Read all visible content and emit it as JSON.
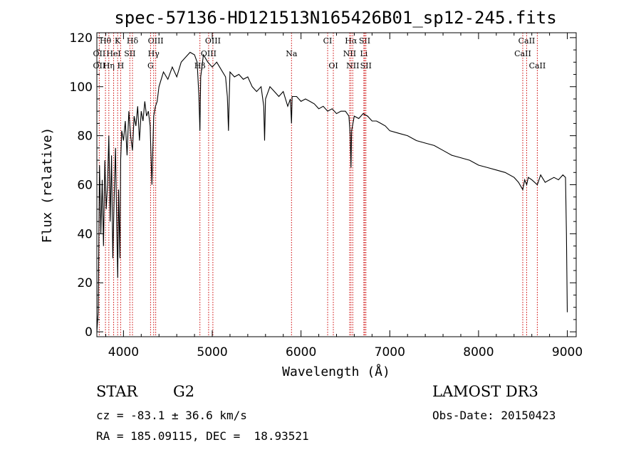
{
  "chart_data": {
    "type": "line",
    "title": "spec-57136-HD121513N165426B01_sp12-245.fits",
    "xlabel": "Wavelength (Å)",
    "ylabel": "Flux (relative)",
    "xlim": [
      3700,
      9100
    ],
    "ylim": [
      -2,
      122
    ],
    "xticks": [
      4000,
      5000,
      6000,
      7000,
      8000,
      9000
    ],
    "yticks": [
      0,
      20,
      40,
      60,
      80,
      100,
      120
    ],
    "series": [
      {
        "name": "flux",
        "x": [
          3700,
          3715,
          3730,
          3745,
          3760,
          3775,
          3790,
          3805,
          3820,
          3835,
          3850,
          3865,
          3880,
          3895,
          3910,
          3925,
          3935,
          3945,
          3960,
          3968,
          3980,
          4000,
          4020,
          4040,
          4060,
          4080,
          4101,
          4120,
          4140,
          4160,
          4180,
          4200,
          4220,
          4240,
          4260,
          4280,
          4300,
          4320,
          4340,
          4360,
          4380,
          4400,
          4450,
          4500,
          4550,
          4600,
          4650,
          4700,
          4750,
          4800,
          4830,
          4850,
          4861,
          4870,
          4900,
          4950,
          5000,
          5050,
          5100,
          5150,
          5170,
          5183,
          5190,
          5200,
          5250,
          5300,
          5350,
          5400,
          5450,
          5500,
          5550,
          5580,
          5590,
          5600,
          5650,
          5700,
          5750,
          5800,
          5850,
          5880,
          5893,
          5900,
          5950,
          6000,
          6050,
          6100,
          6150,
          6200,
          6250,
          6300,
          6350,
          6400,
          6450,
          6500,
          6540,
          6555,
          6563,
          6570,
          6600,
          6650,
          6700,
          6750,
          6800,
          6850,
          6900,
          6950,
          7000,
          7100,
          7200,
          7300,
          7400,
          7500,
          7600,
          7700,
          7800,
          7900,
          8000,
          8100,
          8200,
          8300,
          8400,
          8450,
          8498,
          8520,
          8542,
          8560,
          8600,
          8662,
          8700,
          8750,
          8800,
          8850,
          8900,
          8950,
          8980,
          8990,
          9000
        ],
        "values": [
          0,
          8,
          68,
          40,
          62,
          35,
          70,
          50,
          60,
          80,
          45,
          72,
          30,
          55,
          75,
          42,
          22,
          58,
          30,
          70,
          82,
          78,
          86,
          72,
          90,
          80,
          74,
          88,
          84,
          92,
          78,
          90,
          86,
          94,
          88,
          90,
          84,
          60,
          88,
          92,
          94,
          100,
          106,
          103,
          108,
          104,
          110,
          112,
          114,
          113,
          110,
          96,
          82,
          104,
          113,
          110,
          108,
          110,
          107,
          104,
          96,
          82,
          94,
          106,
          104,
          105,
          103,
          104,
          100,
          98,
          100,
          92,
          78,
          95,
          100,
          98,
          96,
          98,
          92,
          95,
          85,
          96,
          96,
          94,
          95,
          94,
          93,
          91,
          92,
          90,
          91,
          89,
          90,
          90,
          88,
          80,
          67,
          82,
          88,
          87,
          89,
          88,
          86,
          86,
          85,
          84,
          82,
          81,
          80,
          78,
          77,
          76,
          74,
          72,
          71,
          70,
          68,
          67,
          66,
          65,
          63,
          61,
          58,
          62,
          60,
          63,
          62,
          60,
          64,
          61,
          62,
          63,
          62,
          64,
          63,
          40,
          8
        ]
      }
    ],
    "line_markers": [
      {
        "label": "Hθ",
        "wavelength": 3797,
        "row": 0
      },
      {
        "label": "K",
        "wavelength": 3934,
        "row": 0
      },
      {
        "label": "Hδ",
        "wavelength": 4101,
        "row": 0
      },
      {
        "label": "OIII",
        "wavelength": 4363,
        "row": 0
      },
      {
        "label": "OIII",
        "wavelength": 5007,
        "row": 0
      },
      {
        "label": "CI",
        "wavelength": 6300,
        "row": 0
      },
      {
        "label": "Hα",
        "wavelength": 6563,
        "row": 0
      },
      {
        "label": "SII",
        "wavelength": 6717,
        "row": 0
      },
      {
        "label": "CaII",
        "wavelength": 8542,
        "row": 0
      },
      {
        "label": "OII",
        "wavelength": 3727,
        "row": 1
      },
      {
        "label": "HeI",
        "wavelength": 3889,
        "row": 1
      },
      {
        "label": "SII",
        "wavelength": 4072,
        "row": 1
      },
      {
        "label": "Hγ",
        "wavelength": 4340,
        "row": 1
      },
      {
        "label": "OIII",
        "wavelength": 4959,
        "row": 1
      },
      {
        "label": "Na",
        "wavelength": 5893,
        "row": 1
      },
      {
        "label": "NII",
        "wavelength": 6548,
        "row": 1
      },
      {
        "label": "Li",
        "wavelength": 6708,
        "row": 1
      },
      {
        "label": "CaII",
        "wavelength": 8498,
        "row": 1
      },
      {
        "label": "OII",
        "wavelength": 3727,
        "row": 2
      },
      {
        "label": "Hη",
        "wavelength": 3835,
        "row": 2
      },
      {
        "label": "H",
        "wavelength": 3968,
        "row": 2
      },
      {
        "label": "G",
        "wavelength": 4305,
        "row": 2
      },
      {
        "label": "Hβ",
        "wavelength": 4861,
        "row": 2
      },
      {
        "label": "OI",
        "wavelength": 6364,
        "row": 2
      },
      {
        "label": "NII",
        "wavelength": 6583,
        "row": 2
      },
      {
        "label": "SII",
        "wavelength": 6731,
        "row": 2
      },
      {
        "label": "CaII",
        "wavelength": 8662,
        "row": 2
      }
    ]
  },
  "info": {
    "object_class": "STAR",
    "subclass": "G2",
    "survey": "LAMOST DR3",
    "redshift": "cz = -83.1 ± 36.6 km/s",
    "obs_date": "Obs-Date: 20150423",
    "coords": "RA = 185.09115, DEC =  18.93521"
  }
}
